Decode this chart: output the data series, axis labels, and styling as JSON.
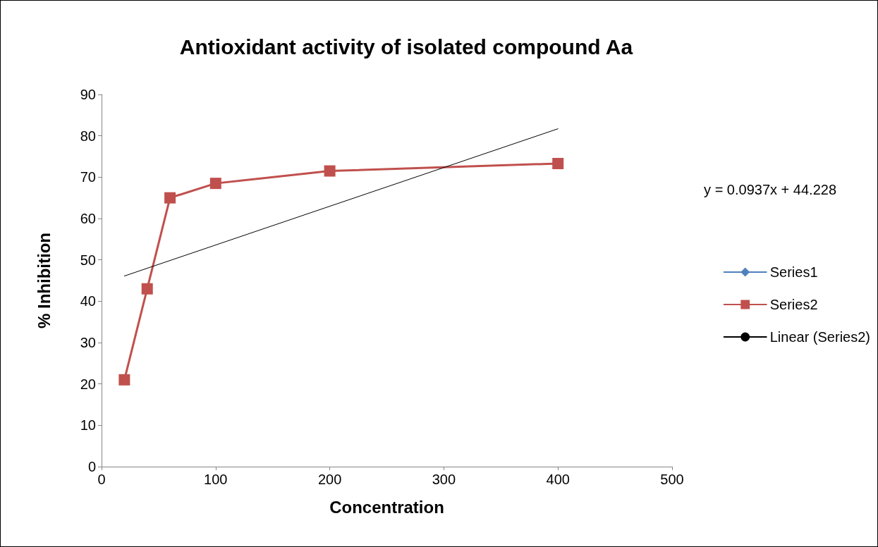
{
  "chart_data": {
    "type": "line",
    "title": "Antioxidant activity of isolated compound Aa",
    "xlabel": "Concentration",
    "ylabel": "% Inhibition",
    "x": [
      20,
      40,
      60,
      100,
      200,
      400
    ],
    "series": [
      {
        "name": "Series1",
        "color": "#4f81bd",
        "marker": "diamond",
        "values": [
          null,
          null,
          null,
          null,
          null,
          null
        ]
      },
      {
        "name": "Series2",
        "color": "#c0504d",
        "marker": "square",
        "values": [
          21,
          43,
          65,
          68.5,
          71.5,
          73.3
        ]
      },
      {
        "name": "Linear (Series2)",
        "color": "#000000",
        "marker": "none",
        "x": [
          20,
          400
        ],
        "values": [
          46.1,
          81.7
        ]
      }
    ],
    "xlim": [
      0,
      500
    ],
    "xticks": [
      0,
      100,
      200,
      300,
      400,
      500
    ],
    "ylim": [
      0,
      90
    ],
    "yticks": [
      0,
      10,
      20,
      30,
      40,
      50,
      60,
      70,
      80,
      90
    ],
    "annotations": [
      "y = 0.0937x + 44.228"
    ],
    "grid": false,
    "legend": "right"
  }
}
